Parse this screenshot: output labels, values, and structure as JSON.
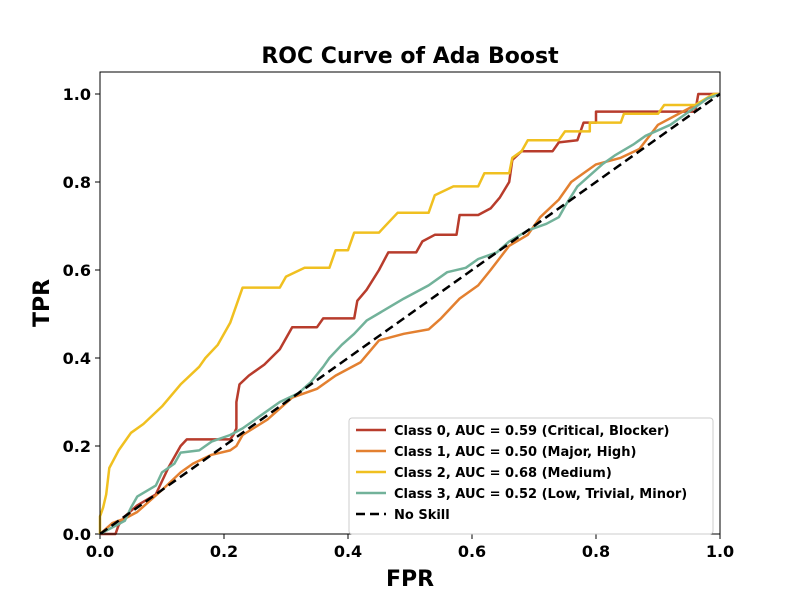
{
  "chart_data": {
    "type": "line",
    "title": "ROC Curve of Ada Boost",
    "xlabel": "FPR",
    "ylabel": "TPR",
    "xlim": [
      0.0,
      1.0
    ],
    "ylim": [
      0.0,
      1.05
    ],
    "xticks": [
      "0.0",
      "0.2",
      "0.4",
      "0.6",
      "0.8",
      "1.0"
    ],
    "yticks": [
      "0.0",
      "0.2",
      "0.4",
      "0.6",
      "0.8",
      "1.0"
    ],
    "grid": false,
    "legend_position": "lower-right",
    "series": [
      {
        "name": "Class 0, AUC = 0.59 (Critical, Blocker)",
        "color": "#b83c2c",
        "dash": "solid",
        "points": [
          [
            0.0,
            0.0
          ],
          [
            0.025,
            0.0
          ],
          [
            0.03,
            0.02
          ],
          [
            0.04,
            0.04
          ],
          [
            0.06,
            0.065
          ],
          [
            0.09,
            0.09
          ],
          [
            0.11,
            0.15
          ],
          [
            0.13,
            0.2
          ],
          [
            0.14,
            0.215
          ],
          [
            0.21,
            0.215
          ],
          [
            0.215,
            0.225
          ],
          [
            0.22,
            0.24
          ],
          [
            0.22,
            0.3
          ],
          [
            0.225,
            0.34
          ],
          [
            0.24,
            0.36
          ],
          [
            0.265,
            0.385
          ],
          [
            0.29,
            0.42
          ],
          [
            0.31,
            0.47
          ],
          [
            0.35,
            0.47
          ],
          [
            0.36,
            0.49
          ],
          [
            0.41,
            0.49
          ],
          [
            0.415,
            0.53
          ],
          [
            0.43,
            0.555
          ],
          [
            0.45,
            0.6
          ],
          [
            0.465,
            0.64
          ],
          [
            0.51,
            0.64
          ],
          [
            0.52,
            0.665
          ],
          [
            0.54,
            0.68
          ],
          [
            0.575,
            0.68
          ],
          [
            0.58,
            0.725
          ],
          [
            0.61,
            0.725
          ],
          [
            0.63,
            0.74
          ],
          [
            0.645,
            0.765
          ],
          [
            0.66,
            0.8
          ],
          [
            0.665,
            0.85
          ],
          [
            0.68,
            0.87
          ],
          [
            0.73,
            0.87
          ],
          [
            0.74,
            0.89
          ],
          [
            0.77,
            0.895
          ],
          [
            0.78,
            0.935
          ],
          [
            0.8,
            0.935
          ],
          [
            0.8,
            0.96
          ],
          [
            0.96,
            0.96
          ],
          [
            0.965,
            1.0
          ],
          [
            1.0,
            1.0
          ]
        ]
      },
      {
        "name": "Class 1, AUC = 0.50 (Major, High)",
        "color": "#e38030",
        "dash": "solid",
        "points": [
          [
            0.0,
            0.0
          ],
          [
            0.02,
            0.025
          ],
          [
            0.04,
            0.035
          ],
          [
            0.06,
            0.05
          ],
          [
            0.1,
            0.1
          ],
          [
            0.13,
            0.14
          ],
          [
            0.15,
            0.16
          ],
          [
            0.18,
            0.18
          ],
          [
            0.21,
            0.19
          ],
          [
            0.22,
            0.2
          ],
          [
            0.23,
            0.225
          ],
          [
            0.27,
            0.26
          ],
          [
            0.31,
            0.31
          ],
          [
            0.35,
            0.33
          ],
          [
            0.38,
            0.36
          ],
          [
            0.42,
            0.39
          ],
          [
            0.45,
            0.44
          ],
          [
            0.49,
            0.455
          ],
          [
            0.53,
            0.465
          ],
          [
            0.55,
            0.49
          ],
          [
            0.58,
            0.535
          ],
          [
            0.61,
            0.565
          ],
          [
            0.63,
            0.6
          ],
          [
            0.66,
            0.655
          ],
          [
            0.69,
            0.68
          ],
          [
            0.71,
            0.72
          ],
          [
            0.74,
            0.76
          ],
          [
            0.76,
            0.8
          ],
          [
            0.8,
            0.84
          ],
          [
            0.84,
            0.855
          ],
          [
            0.87,
            0.875
          ],
          [
            0.9,
            0.93
          ],
          [
            0.94,
            0.96
          ],
          [
            0.98,
            0.99
          ],
          [
            1.0,
            1.0
          ]
        ]
      },
      {
        "name": "Class 2, AUC = 0.68 (Medium)",
        "color": "#f0c020",
        "dash": "solid",
        "points": [
          [
            0.0,
            0.0
          ],
          [
            0.0,
            0.04
          ],
          [
            0.005,
            0.06
          ],
          [
            0.01,
            0.09
          ],
          [
            0.015,
            0.15
          ],
          [
            0.03,
            0.19
          ],
          [
            0.05,
            0.23
          ],
          [
            0.07,
            0.25
          ],
          [
            0.1,
            0.29
          ],
          [
            0.13,
            0.34
          ],
          [
            0.16,
            0.38
          ],
          [
            0.17,
            0.4
          ],
          [
            0.19,
            0.43
          ],
          [
            0.21,
            0.48
          ],
          [
            0.22,
            0.52
          ],
          [
            0.23,
            0.56
          ],
          [
            0.29,
            0.56
          ],
          [
            0.3,
            0.585
          ],
          [
            0.33,
            0.605
          ],
          [
            0.37,
            0.605
          ],
          [
            0.38,
            0.645
          ],
          [
            0.4,
            0.645
          ],
          [
            0.41,
            0.685
          ],
          [
            0.45,
            0.685
          ],
          [
            0.48,
            0.73
          ],
          [
            0.53,
            0.73
          ],
          [
            0.54,
            0.77
          ],
          [
            0.57,
            0.79
          ],
          [
            0.61,
            0.79
          ],
          [
            0.62,
            0.82
          ],
          [
            0.66,
            0.82
          ],
          [
            0.665,
            0.855
          ],
          [
            0.68,
            0.87
          ],
          [
            0.69,
            0.895
          ],
          [
            0.74,
            0.895
          ],
          [
            0.75,
            0.915
          ],
          [
            0.79,
            0.915
          ],
          [
            0.79,
            0.935
          ],
          [
            0.84,
            0.935
          ],
          [
            0.845,
            0.955
          ],
          [
            0.9,
            0.955
          ],
          [
            0.91,
            0.975
          ],
          [
            0.96,
            0.975
          ],
          [
            0.99,
            1.0
          ],
          [
            1.0,
            1.0
          ]
        ]
      },
      {
        "name": "Class 3, AUC = 0.52 (Low, Trivial, Minor)",
        "color": "#72b29a",
        "dash": "solid",
        "points": [
          [
            0.0,
            0.0
          ],
          [
            0.02,
            0.015
          ],
          [
            0.04,
            0.03
          ],
          [
            0.05,
            0.06
          ],
          [
            0.06,
            0.085
          ],
          [
            0.09,
            0.11
          ],
          [
            0.1,
            0.14
          ],
          [
            0.12,
            0.16
          ],
          [
            0.13,
            0.185
          ],
          [
            0.16,
            0.19
          ],
          [
            0.18,
            0.21
          ],
          [
            0.21,
            0.225
          ],
          [
            0.23,
            0.24
          ],
          [
            0.26,
            0.27
          ],
          [
            0.29,
            0.3
          ],
          [
            0.32,
            0.32
          ],
          [
            0.34,
            0.345
          ],
          [
            0.36,
            0.38
          ],
          [
            0.37,
            0.4
          ],
          [
            0.39,
            0.43
          ],
          [
            0.41,
            0.455
          ],
          [
            0.43,
            0.485
          ],
          [
            0.46,
            0.51
          ],
          [
            0.49,
            0.535
          ],
          [
            0.53,
            0.565
          ],
          [
            0.56,
            0.595
          ],
          [
            0.59,
            0.605
          ],
          [
            0.61,
            0.625
          ],
          [
            0.64,
            0.64
          ],
          [
            0.66,
            0.665
          ],
          [
            0.69,
            0.69
          ],
          [
            0.72,
            0.705
          ],
          [
            0.74,
            0.72
          ],
          [
            0.75,
            0.745
          ],
          [
            0.77,
            0.79
          ],
          [
            0.79,
            0.815
          ],
          [
            0.81,
            0.84
          ],
          [
            0.83,
            0.86
          ],
          [
            0.86,
            0.885
          ],
          [
            0.88,
            0.905
          ],
          [
            0.92,
            0.93
          ],
          [
            0.95,
            0.96
          ],
          [
            0.98,
            0.99
          ],
          [
            1.0,
            1.0
          ]
        ]
      },
      {
        "name": "No Skill",
        "color": "#000000",
        "dash": "dashed",
        "points": [
          [
            0.0,
            0.0
          ],
          [
            1.0,
            1.0
          ]
        ]
      }
    ]
  }
}
